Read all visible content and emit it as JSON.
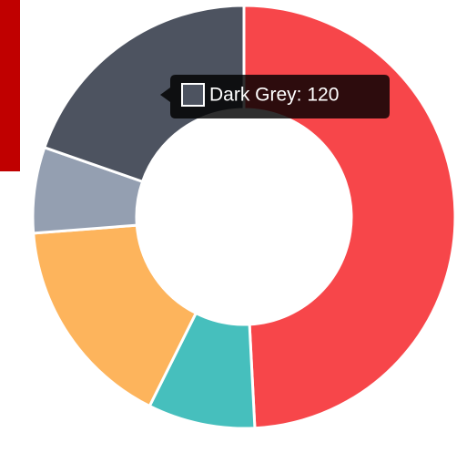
{
  "chart_data": {
    "type": "doughnut",
    "values": [
      300,
      50,
      100,
      40,
      120
    ],
    "colors": [
      "#F7464A",
      "#46BFBD",
      "#FDB45C",
      "#949FB1",
      "#4D5360"
    ],
    "tooltip": "Dark Grey: 120"
  }
}
